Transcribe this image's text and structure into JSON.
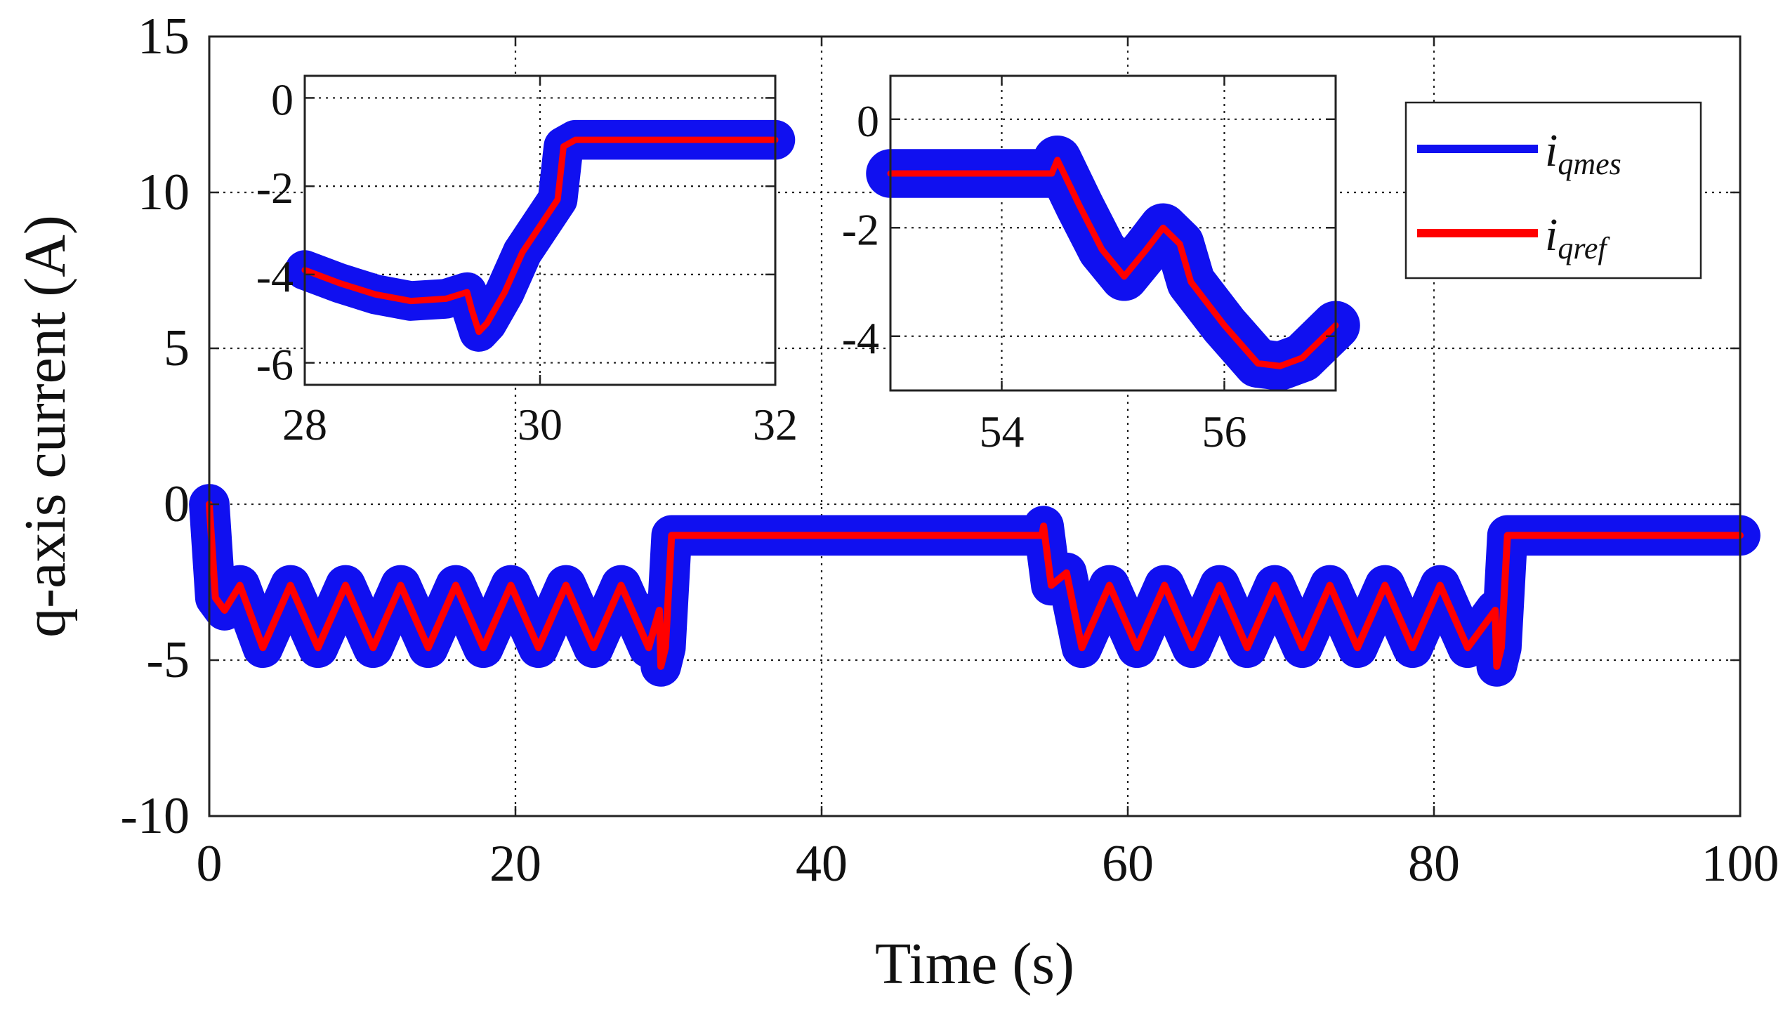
{
  "chart_data": [
    {
      "id": "main",
      "type": "line",
      "title": "",
      "xlabel": "Time (s)",
      "ylabel": "q-axis current (A)",
      "xlim": [
        0,
        100
      ],
      "ylim": [
        -10,
        15
      ],
      "xticks": [
        0,
        20,
        40,
        60,
        80,
        100
      ],
      "xtick_labels": [
        "0",
        "20",
        "40",
        "60",
        "80",
        "100"
      ],
      "yticks": [
        -10,
        -5,
        0,
        5,
        10,
        15
      ],
      "ytick_labels": [
        "-10",
        "-5",
        "0",
        "5",
        "10",
        "15"
      ],
      "grid": true,
      "legend_position": "top-right",
      "series": [
        {
          "name": "i_qmes",
          "legend_label": "i",
          "legend_sub": "qmes",
          "color": "#1010f0",
          "noise_band": 0.65,
          "points": [
            [
              0,
              0
            ],
            [
              0.4,
              -3
            ],
            [
              1,
              -3.4
            ],
            [
              2,
              -2.6
            ],
            [
              3.5,
              -4.6
            ],
            [
              5.3,
              -2.6
            ],
            [
              7.1,
              -4.6
            ],
            [
              8.9,
              -2.6
            ],
            [
              10.7,
              -4.6
            ],
            [
              12.5,
              -2.6
            ],
            [
              14.3,
              -4.6
            ],
            [
              16.1,
              -2.6
            ],
            [
              17.9,
              -4.6
            ],
            [
              19.7,
              -2.6
            ],
            [
              21.5,
              -4.6
            ],
            [
              23.3,
              -2.6
            ],
            [
              25.1,
              -4.6
            ],
            [
              26.9,
              -2.6
            ],
            [
              28.7,
              -4.6
            ],
            [
              29.4,
              -3.4
            ],
            [
              29.5,
              -5.2
            ],
            [
              29.8,
              -4.6
            ],
            [
              30.2,
              -1.0
            ],
            [
              54.4,
              -1.0
            ],
            [
              54.5,
              -0.7
            ],
            [
              55.0,
              -2.6
            ],
            [
              56.0,
              -2.2
            ],
            [
              57.0,
              -4.6
            ],
            [
              58.8,
              -2.6
            ],
            [
              60.6,
              -4.6
            ],
            [
              62.4,
              -2.6
            ],
            [
              64.2,
              -4.6
            ],
            [
              66.0,
              -2.6
            ],
            [
              67.8,
              -4.6
            ],
            [
              69.6,
              -2.6
            ],
            [
              71.4,
              -4.6
            ],
            [
              73.2,
              -2.6
            ],
            [
              75.0,
              -4.6
            ],
            [
              76.8,
              -2.6
            ],
            [
              78.6,
              -4.6
            ],
            [
              80.4,
              -2.6
            ],
            [
              82.2,
              -4.6
            ],
            [
              84.0,
              -3.4
            ],
            [
              84.1,
              -5.2
            ],
            [
              84.4,
              -4.6
            ],
            [
              84.8,
              -1.0
            ],
            [
              100,
              -1.0
            ]
          ]
        },
        {
          "name": "i_qref",
          "legend_label": "i",
          "legend_sub": "qref",
          "color": "#ff0000",
          "points": [
            [
              0,
              0
            ],
            [
              0.4,
              -3
            ],
            [
              1,
              -3.4
            ],
            [
              2,
              -2.6
            ],
            [
              3.5,
              -4.6
            ],
            [
              5.3,
              -2.6
            ],
            [
              7.1,
              -4.6
            ],
            [
              8.9,
              -2.6
            ],
            [
              10.7,
              -4.6
            ],
            [
              12.5,
              -2.6
            ],
            [
              14.3,
              -4.6
            ],
            [
              16.1,
              -2.6
            ],
            [
              17.9,
              -4.6
            ],
            [
              19.7,
              -2.6
            ],
            [
              21.5,
              -4.6
            ],
            [
              23.3,
              -2.6
            ],
            [
              25.1,
              -4.6
            ],
            [
              26.9,
              -2.6
            ],
            [
              28.7,
              -4.6
            ],
            [
              29.4,
              -3.4
            ],
            [
              29.5,
              -5.2
            ],
            [
              29.8,
              -4.6
            ],
            [
              30.2,
              -1.0
            ],
            [
              54.4,
              -1.0
            ],
            [
              54.5,
              -0.7
            ],
            [
              55.0,
              -2.6
            ],
            [
              56.0,
              -2.2
            ],
            [
              57.0,
              -4.6
            ],
            [
              58.8,
              -2.6
            ],
            [
              60.6,
              -4.6
            ],
            [
              62.4,
              -2.6
            ],
            [
              64.2,
              -4.6
            ],
            [
              66.0,
              -2.6
            ],
            [
              67.8,
              -4.6
            ],
            [
              69.6,
              -2.6
            ],
            [
              71.4,
              -4.6
            ],
            [
              73.2,
              -2.6
            ],
            [
              75.0,
              -4.6
            ],
            [
              76.8,
              -2.6
            ],
            [
              78.6,
              -4.6
            ],
            [
              80.4,
              -2.6
            ],
            [
              82.2,
              -4.6
            ],
            [
              84.0,
              -3.4
            ],
            [
              84.1,
              -5.2
            ],
            [
              84.4,
              -4.6
            ],
            [
              84.8,
              -1.0
            ],
            [
              100,
              -1.0
            ]
          ]
        }
      ]
    },
    {
      "id": "inset-left",
      "type": "line",
      "xlim": [
        28,
        32
      ],
      "ylim": [
        -6.5,
        0.5
      ],
      "xticks": [
        28,
        30,
        32
      ],
      "xtick_labels": [
        "28",
        "30",
        "32"
      ],
      "yticks": [
        -6,
        -4,
        -2,
        0
      ],
      "ytick_labels": [
        "-6",
        "-4",
        "-2",
        "0"
      ],
      "grid": true,
      "series": [
        {
          "name": "i_qmes",
          "color": "#1010f0",
          "noise_band": 0.45,
          "points": [
            [
              28,
              -3.9
            ],
            [
              28.3,
              -4.2
            ],
            [
              28.6,
              -4.45
            ],
            [
              28.9,
              -4.6
            ],
            [
              29.2,
              -4.55
            ],
            [
              29.38,
              -4.4
            ],
            [
              29.42,
              -4.8
            ],
            [
              29.48,
              -5.3
            ],
            [
              29.55,
              -5.1
            ],
            [
              29.7,
              -4.4
            ],
            [
              29.85,
              -3.5
            ],
            [
              30.0,
              -2.9
            ],
            [
              30.15,
              -2.3
            ],
            [
              30.2,
              -1.1
            ],
            [
              30.3,
              -0.95
            ],
            [
              32,
              -0.95
            ]
          ]
        },
        {
          "name": "i_qref",
          "color": "#ff0000",
          "points": [
            [
              28,
              -3.9
            ],
            [
              28.3,
              -4.2
            ],
            [
              28.6,
              -4.45
            ],
            [
              28.9,
              -4.6
            ],
            [
              29.2,
              -4.55
            ],
            [
              29.38,
              -4.4
            ],
            [
              29.42,
              -4.8
            ],
            [
              29.48,
              -5.3
            ],
            [
              29.55,
              -5.1
            ],
            [
              29.7,
              -4.4
            ],
            [
              29.85,
              -3.5
            ],
            [
              30.0,
              -2.9
            ],
            [
              30.15,
              -2.3
            ],
            [
              30.2,
              -1.1
            ],
            [
              30.3,
              -0.95
            ],
            [
              32,
              -0.95
            ]
          ]
        }
      ]
    },
    {
      "id": "inset-right",
      "type": "line",
      "xlim": [
        53,
        57
      ],
      "ylim": [
        -5,
        0.8
      ],
      "xticks": [
        54,
        56
      ],
      "xtick_labels": [
        "54",
        "56"
      ],
      "yticks": [
        -4,
        -2,
        0
      ],
      "ytick_labels": [
        "-4",
        "-2",
        "0"
      ],
      "grid": true,
      "series": [
        {
          "name": "i_qmes",
          "color": "#1010f0",
          "noise_band": 0.45,
          "points": [
            [
              53,
              -1.0
            ],
            [
              54.45,
              -1.0
            ],
            [
              54.5,
              -0.75
            ],
            [
              54.7,
              -1.6
            ],
            [
              54.9,
              -2.4
            ],
            [
              55.1,
              -2.9
            ],
            [
              55.3,
              -2.4
            ],
            [
              55.45,
              -2.0
            ],
            [
              55.6,
              -2.3
            ],
            [
              55.7,
              -3.0
            ],
            [
              56.0,
              -3.8
            ],
            [
              56.3,
              -4.5
            ],
            [
              56.5,
              -4.55
            ],
            [
              56.7,
              -4.4
            ],
            [
              57,
              -3.8
            ]
          ]
        },
        {
          "name": "i_qref",
          "color": "#ff0000",
          "points": [
            [
              53,
              -1.0
            ],
            [
              54.45,
              -1.0
            ],
            [
              54.5,
              -0.75
            ],
            [
              54.7,
              -1.6
            ],
            [
              54.9,
              -2.4
            ],
            [
              55.1,
              -2.9
            ],
            [
              55.3,
              -2.4
            ],
            [
              55.45,
              -2.0
            ],
            [
              55.6,
              -2.3
            ],
            [
              55.7,
              -3.0
            ],
            [
              56.0,
              -3.8
            ],
            [
              56.3,
              -4.5
            ],
            [
              56.5,
              -4.55
            ],
            [
              56.7,
              -4.4
            ],
            [
              57,
              -3.8
            ]
          ]
        }
      ]
    }
  ]
}
